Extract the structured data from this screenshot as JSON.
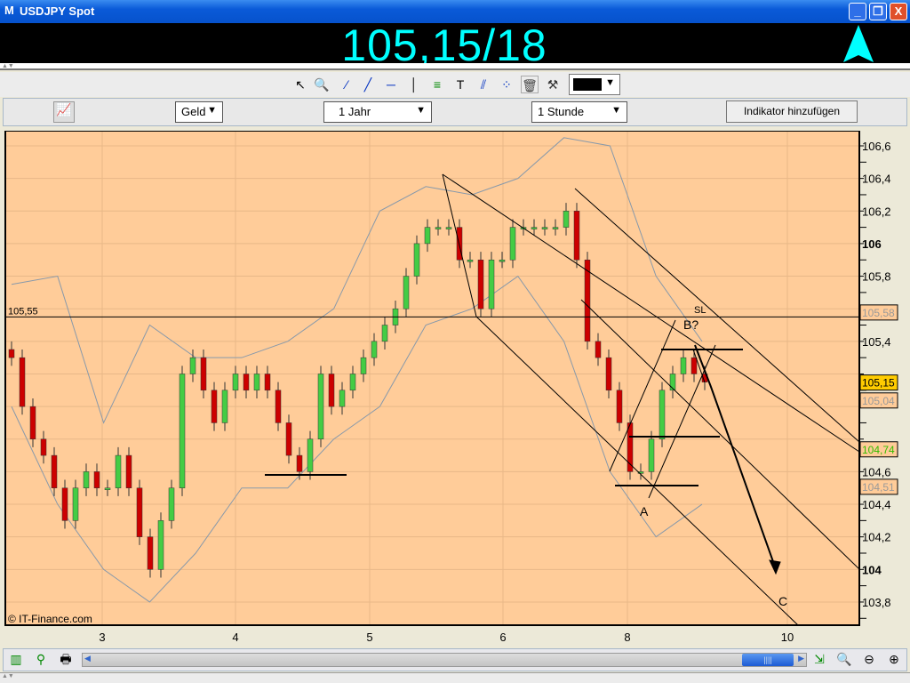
{
  "window": {
    "title": "USDJPY Spot",
    "logo": "M",
    "minimize": "_",
    "restore": "❐",
    "close": "X"
  },
  "quote": {
    "text": "105,15/18",
    "direction": "up",
    "color": "#00FFFF"
  },
  "toolbar": {
    "icons": [
      "cursor-icon",
      "zoom-in-icon",
      "line-segment-icon",
      "trendline-icon",
      "horizontal-line-icon",
      "vertical-line-icon",
      "fibonacci-icon",
      "text-icon",
      "parallel-channel-icon",
      "points-icon",
      "trash-icon",
      "tools-icon"
    ],
    "color_value": "#000000"
  },
  "controls": {
    "price_type": "Geld",
    "period": "1 Jahr",
    "interval": "1 Stunde",
    "add_indicator": "Indikator hinzufügen"
  },
  "chart": {
    "watermark": "© IT-Finance.com",
    "background": "#FFCC99",
    "up_color": "#44CC44",
    "down_color": "#CC0000",
    "y_ticks": [
      "106,6",
      "106,4",
      "106,2",
      "106",
      "105,8",
      "105,4",
      "104,6",
      "104,4",
      "104,2",
      "104",
      "103,8"
    ],
    "y_tick_values": [
      106.6,
      106.4,
      106.2,
      106.0,
      105.8,
      105.4,
      104.6,
      104.4,
      104.2,
      104.0,
      103.8
    ],
    "x_ticks": [
      "3",
      "4",
      "5",
      "6",
      "8",
      "10"
    ],
    "hline": {
      "value": 105.55,
      "label": "105,55"
    },
    "price_labels": [
      {
        "text": "105,58",
        "value": 105.58,
        "color": "#999999",
        "bg": "#FFCC99"
      },
      {
        "text": "105,15",
        "value": 105.15,
        "color": "#000000",
        "bg": "#FFCC00"
      },
      {
        "text": "105,04",
        "value": 105.04,
        "color": "#999999",
        "bg": "#FFCC99"
      },
      {
        "text": "104,74",
        "value": 104.74,
        "color": "#33BB00",
        "bg": "#FFCC99"
      },
      {
        "text": "104,51",
        "value": 104.51,
        "color": "#999999",
        "bg": "#FFCC99"
      }
    ],
    "annotations": {
      "a": "A",
      "b": "B?",
      "c": "C",
      "sl": "SL"
    }
  },
  "chart_data": {
    "type": "candlestick",
    "ylim": [
      103.7,
      106.7
    ],
    "closes": [
      105.3,
      105.0,
      104.8,
      104.7,
      104.5,
      104.3,
      104.5,
      104.6,
      104.5,
      104.5,
      104.7,
      104.5,
      104.2,
      104.0,
      104.3,
      104.5,
      105.2,
      105.3,
      105.1,
      104.9,
      105.1,
      105.2,
      105.1,
      105.2,
      105.1,
      104.9,
      104.7,
      104.6,
      104.8,
      105.2,
      105.0,
      105.1,
      105.2,
      105.3,
      105.4,
      105.5,
      105.6,
      105.8,
      106.0,
      106.1,
      106.1,
      106.1,
      105.9,
      105.9,
      105.6,
      105.9,
      105.9,
      106.1,
      106.1,
      106.1,
      106.1,
      106.1,
      106.2,
      105.9,
      105.4,
      105.3,
      105.1,
      104.9,
      104.6,
      104.6,
      104.8,
      105.1,
      105.2,
      105.3,
      105.2,
      105.15
    ],
    "upper_band": [
      105.75,
      105.8,
      104.9,
      105.5,
      105.3,
      105.3,
      105.4,
      105.6,
      106.2,
      106.35,
      106.3,
      106.4,
      106.65,
      106.6,
      105.8,
      105.4
    ],
    "lower_band": [
      105.0,
      104.4,
      104.0,
      103.8,
      104.1,
      104.5,
      104.5,
      104.8,
      105.0,
      105.5,
      105.6,
      105.8,
      105.4,
      104.6,
      104.2,
      104.4
    ]
  },
  "bottom": {
    "scroll_position": 0.93
  }
}
